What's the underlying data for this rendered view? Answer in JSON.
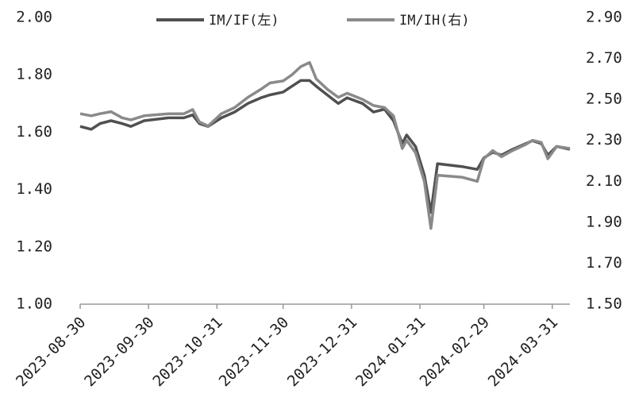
{
  "chart_data": {
    "type": "line",
    "x": [
      "2023-08-30",
      "2023-09-04",
      "2023-09-08",
      "2023-09-13",
      "2023-09-18",
      "2023-09-22",
      "2023-09-28",
      "2023-10-09",
      "2023-10-16",
      "2023-10-20",
      "2023-10-23",
      "2023-10-27",
      "2023-11-02",
      "2023-11-08",
      "2023-11-14",
      "2023-11-20",
      "2023-11-24",
      "2023-11-30",
      "2023-12-04",
      "2023-12-08",
      "2023-12-12",
      "2023-12-15",
      "2023-12-20",
      "2023-12-25",
      "2023-12-29",
      "2024-01-05",
      "2024-01-10",
      "2024-01-15",
      "2024-01-19",
      "2024-01-23",
      "2024-01-25",
      "2024-01-29",
      "2024-02-02",
      "2024-02-05",
      "2024-02-08",
      "2024-02-19",
      "2024-02-26",
      "2024-02-29",
      "2024-03-04",
      "2024-03-08",
      "2024-03-13",
      "2024-03-19",
      "2024-03-22",
      "2024-03-26",
      "2024-03-29",
      "2024-04-02",
      "2024-04-08"
    ],
    "series": [
      {
        "name": "IM/IF(左)",
        "color": "#505050",
        "axis": "y",
        "values": [
          1.62,
          1.61,
          1.63,
          1.64,
          1.63,
          1.62,
          1.64,
          1.65,
          1.65,
          1.66,
          1.63,
          1.62,
          1.65,
          1.67,
          1.7,
          1.72,
          1.73,
          1.74,
          1.76,
          1.78,
          1.78,
          1.76,
          1.73,
          1.7,
          1.72,
          1.7,
          1.67,
          1.68,
          1.64,
          1.56,
          1.59,
          1.55,
          1.45,
          1.32,
          1.49,
          1.48,
          1.47,
          1.51,
          1.53,
          1.52,
          1.54,
          1.56,
          1.57,
          1.56,
          1.52,
          1.55,
          1.54
        ]
      },
      {
        "name": "IM/IH(右)",
        "color": "#8a8a8a",
        "axis": "y2",
        "values": [
          2.43,
          2.42,
          2.43,
          2.44,
          2.41,
          2.4,
          2.42,
          2.43,
          2.43,
          2.45,
          2.39,
          2.37,
          2.43,
          2.46,
          2.51,
          2.55,
          2.58,
          2.59,
          2.62,
          2.66,
          2.68,
          2.6,
          2.55,
          2.51,
          2.53,
          2.5,
          2.47,
          2.46,
          2.42,
          2.26,
          2.3,
          2.24,
          2.1,
          1.87,
          2.13,
          2.12,
          2.1,
          2.21,
          2.25,
          2.22,
          2.25,
          2.28,
          2.3,
          2.29,
          2.21,
          2.27,
          2.26
        ]
      }
    ],
    "xlim": [
      "2023-08-30",
      "2024-04-08"
    ],
    "xticks": [
      "2023-08-30",
      "2023-09-30",
      "2023-10-31",
      "2023-11-30",
      "2023-12-31",
      "2024-01-31",
      "2024-02-29",
      "2024-03-31"
    ],
    "ylim": [
      1.0,
      2.0
    ],
    "yticks": [
      {
        "value": 1.0,
        "label": "1.00"
      },
      {
        "value": 1.2,
        "label": "1.20"
      },
      {
        "value": 1.4,
        "label": "1.40"
      },
      {
        "value": 1.6,
        "label": "1.60"
      },
      {
        "value": 1.8,
        "label": "1.80"
      },
      {
        "value": 2.0,
        "label": "2.00"
      }
    ],
    "y2lim": [
      1.5,
      2.9
    ],
    "y2ticks": [
      {
        "value": 1.5,
        "label": "1.50"
      },
      {
        "value": 1.7,
        "label": "1.70"
      },
      {
        "value": 1.9,
        "label": "1.90"
      },
      {
        "value": 2.1,
        "label": "2.10"
      },
      {
        "value": 2.3,
        "label": "2.30"
      },
      {
        "value": 2.5,
        "label": "2.50"
      },
      {
        "value": 2.7,
        "label": "2.70"
      },
      {
        "value": 2.9,
        "label": "2.90"
      }
    ],
    "grid": false
  }
}
